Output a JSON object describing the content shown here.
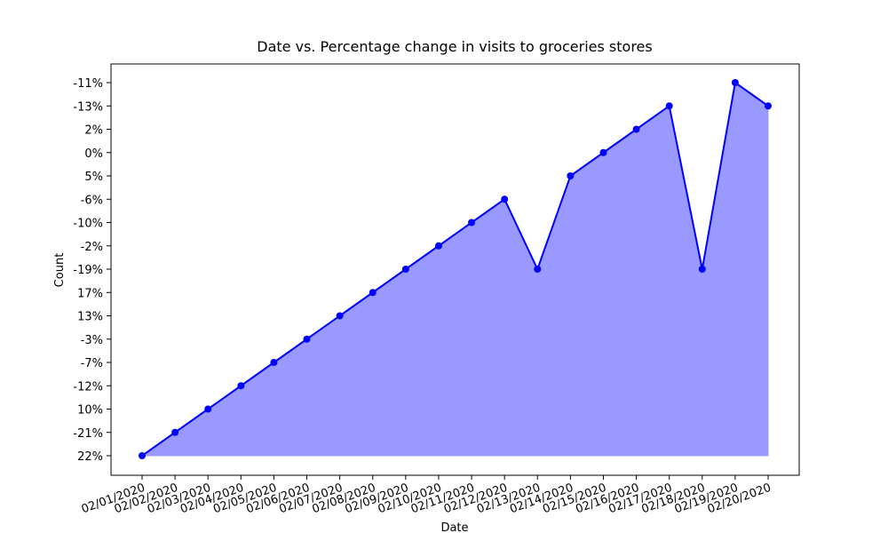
{
  "chart_data": {
    "type": "area-line",
    "title": "Date vs. Percentage change in visits to groceries stores",
    "x_label": "Date",
    "y_label": "Count",
    "categories": [
      "02/01/2020",
      "02/02/2020",
      "02/03/2020",
      "02/04/2020",
      "02/05/2020",
      "02/06/2020",
      "02/07/2020",
      "02/08/2020",
      "02/09/2020",
      "02/10/2020",
      "02/11/2020",
      "02/12/2020",
      "02/13/2020",
      "02/14/2020",
      "02/15/2020",
      "02/16/2020",
      "02/17/2020",
      "02/18/2020",
      "02/19/2020",
      "02/20/2020"
    ],
    "ycategories": [
      "22%",
      "-21%",
      "10%",
      "-12%",
      "-7%",
      "-3%",
      "13%",
      "17%",
      "-19%",
      "-2%",
      "-10%",
      "-6%",
      "5%",
      "0%",
      "2%",
      "-13%",
      "-11%"
    ],
    "series": [
      {
        "color": "#0000ff",
        "fill": "#9999ff",
        "values": [
          "22%",
          "-21%",
          "10%",
          "-12%",
          "-7%",
          "-3%",
          "13%",
          "17%",
          "-19%",
          "-2%",
          "-10%",
          "-6%",
          "-19%",
          "5%",
          "0%",
          "2%",
          "-13%",
          "-19%",
          "-11%",
          "-13%"
        ]
      }
    ]
  }
}
